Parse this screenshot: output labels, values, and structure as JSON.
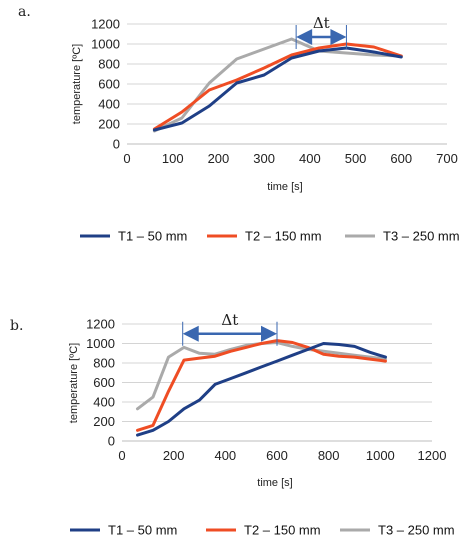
{
  "chart_data": [
    {
      "panel_label": "a.",
      "type": "line",
      "xlabel": "time [s]",
      "ylabel": "temperature [ºC]",
      "xlim": [
        0,
        700
      ],
      "ylim": [
        0,
        1200
      ],
      "xticks": [
        "0",
        "100",
        "200",
        "300",
        "400",
        "500",
        "600",
        "700"
      ],
      "yticks": [
        "0",
        "200",
        "400",
        "600",
        "800",
        "1000",
        "1200"
      ],
      "grid": "horizontal",
      "legend": "bottom",
      "annotation": {
        "text": "Δt",
        "from_x": 370,
        "to_x": 480,
        "y": 1070
      },
      "series": [
        {
          "name": "T1 – 50 mm",
          "color": "#1f3f86",
          "points": [
            [
              60,
              140
            ],
            [
              120,
              210
            ],
            [
              180,
              380
            ],
            [
              240,
              610
            ],
            [
              300,
              690
            ],
            [
              360,
              860
            ],
            [
              420,
              930
            ],
            [
              480,
              960
            ],
            [
              540,
              920
            ],
            [
              600,
              870
            ]
          ]
        },
        {
          "name": "T2 – 150 mm",
          "color": "#ef4d24",
          "points": [
            [
              60,
              150
            ],
            [
              120,
              320
            ],
            [
              180,
              540
            ],
            [
              240,
              640
            ],
            [
              300,
              760
            ],
            [
              360,
              890
            ],
            [
              420,
              960
            ],
            [
              480,
              1000
            ],
            [
              540,
              970
            ],
            [
              600,
              880
            ]
          ]
        },
        {
          "name": "T3 – 250 mm",
          "color": "#aaaaaa",
          "points": [
            [
              60,
              130
            ],
            [
              120,
              260
            ],
            [
              180,
              610
            ],
            [
              240,
              850
            ],
            [
              300,
              950
            ],
            [
              360,
              1050
            ],
            [
              420,
              930
            ],
            [
              480,
              910
            ],
            [
              540,
              890
            ],
            [
              600,
              880
            ]
          ]
        }
      ]
    },
    {
      "panel_label": "b.",
      "type": "line",
      "xlabel": "time [s]",
      "ylabel": "temperature [ºC]",
      "xlim": [
        0,
        1200
      ],
      "ylim": [
        0,
        1200
      ],
      "xticks": [
        "0",
        "200",
        "400",
        "600",
        "800",
        "1000",
        "1200"
      ],
      "yticks": [
        "0",
        "200",
        "400",
        "600",
        "800",
        "1000",
        "1200"
      ],
      "grid": "horizontal",
      "legend": "bottom",
      "annotation": {
        "text": "Δt",
        "from_x": 235,
        "to_x": 600,
        "y": 1100
      },
      "series": [
        {
          "name": "T1 – 50 mm",
          "color": "#1f3f86",
          "points": [
            [
              60,
              60
            ],
            [
              120,
              110
            ],
            [
              180,
              200
            ],
            [
              240,
              330
            ],
            [
              300,
              420
            ],
            [
              360,
              580
            ],
            [
              420,
              640
            ],
            [
              480,
              700
            ],
            [
              540,
              760
            ],
            [
              600,
              820
            ],
            [
              660,
              880
            ],
            [
              720,
              940
            ],
            [
              780,
              1000
            ],
            [
              840,
              990
            ],
            [
              900,
              970
            ],
            [
              960,
              910
            ],
            [
              1020,
              860
            ]
          ]
        },
        {
          "name": "T2 – 150 mm",
          "color": "#ef4d24",
          "points": [
            [
              60,
              110
            ],
            [
              120,
              160
            ],
            [
              180,
              510
            ],
            [
              240,
              830
            ],
            [
              300,
              850
            ],
            [
              360,
              870
            ],
            [
              420,
              920
            ],
            [
              480,
              960
            ],
            [
              540,
              1000
            ],
            [
              600,
              1030
            ],
            [
              660,
              1010
            ],
            [
              720,
              960
            ],
            [
              780,
              890
            ],
            [
              840,
              870
            ],
            [
              900,
              860
            ],
            [
              960,
              840
            ],
            [
              1020,
              820
            ]
          ]
        },
        {
          "name": "T3 – 250 mm",
          "color": "#aaaaaa",
          "points": [
            [
              60,
              330
            ],
            [
              120,
              450
            ],
            [
              180,
              860
            ],
            [
              240,
              960
            ],
            [
              300,
              900
            ],
            [
              360,
              890
            ],
            [
              420,
              940
            ],
            [
              480,
              980
            ],
            [
              540,
              1000
            ],
            [
              600,
              1010
            ],
            [
              660,
              970
            ],
            [
              720,
              940
            ],
            [
              780,
              920
            ],
            [
              840,
              900
            ],
            [
              900,
              880
            ],
            [
              960,
              860
            ],
            [
              1020,
              840
            ]
          ]
        }
      ]
    }
  ]
}
